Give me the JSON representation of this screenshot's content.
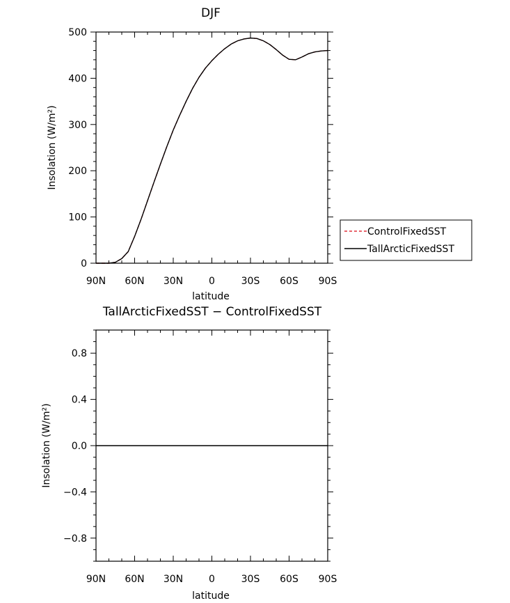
{
  "chart_data": [
    {
      "type": "line",
      "title": "DJF",
      "xlabel": "latitude",
      "ylabel": "Insolation (W/m²)",
      "x_ticks": [
        "90N",
        "60N",
        "30N",
        "0",
        "30S",
        "60S",
        "90S"
      ],
      "x_tick_values": [
        90,
        60,
        30,
        0,
        -30,
        -60,
        -90
      ],
      "y_ticks": [
        "0",
        "100",
        "200",
        "300",
        "400",
        "500"
      ],
      "y_tick_values": [
        0,
        100,
        200,
        300,
        400,
        500
      ],
      "xlim": [
        90,
        -90
      ],
      "ylim": [
        0,
        500
      ],
      "grid": false,
      "legend_position": "outside-right",
      "x": [
        90,
        85,
        80,
        75,
        70,
        65,
        60,
        55,
        50,
        45,
        40,
        35,
        30,
        25,
        20,
        15,
        10,
        5,
        0,
        -5,
        -10,
        -15,
        -20,
        -25,
        -30,
        -35,
        -40,
        -45,
        -50,
        -55,
        -60,
        -65,
        -70,
        -75,
        -80,
        -85,
        -90
      ],
      "series": [
        {
          "name": "ControlFixedSST",
          "color": "#e0303a",
          "style": "dashed",
          "values": [
            0,
            0,
            0,
            2,
            10,
            25,
            58,
            95,
            135,
            175,
            214,
            252,
            288,
            320,
            350,
            378,
            402,
            422,
            438,
            452,
            464,
            474,
            481,
            485,
            487,
            486,
            481,
            473,
            462,
            450,
            441,
            440,
            446,
            453,
            457,
            459,
            460
          ]
        },
        {
          "name": "TallArcticFixedSST",
          "color": "#000000",
          "style": "solid",
          "values": [
            0,
            0,
            0,
            2,
            10,
            25,
            58,
            95,
            135,
            175,
            214,
            252,
            288,
            320,
            350,
            378,
            402,
            422,
            438,
            452,
            464,
            474,
            481,
            485,
            487,
            486,
            481,
            473,
            462,
            450,
            441,
            440,
            446,
            453,
            457,
            459,
            460
          ]
        }
      ]
    },
    {
      "type": "line",
      "title": "TallArcticFixedSST − ControlFixedSST",
      "xlabel": "latitude",
      "ylabel": "Insolation (W/m²)",
      "x_ticks": [
        "90N",
        "60N",
        "30N",
        "0",
        "30S",
        "60S",
        "90S"
      ],
      "x_tick_values": [
        90,
        60,
        30,
        0,
        -30,
        -60,
        -90
      ],
      "y_ticks": [
        "−0.8",
        "−0.4",
        "0.0",
        "0.4",
        "0.8"
      ],
      "y_tick_values": [
        -0.8,
        -0.4,
        0.0,
        0.4,
        0.8
      ],
      "xlim": [
        90,
        -90
      ],
      "ylim": [
        -1,
        1
      ],
      "grid": false,
      "x": [
        90,
        -90
      ],
      "series": [
        {
          "color": "#000000",
          "style": "solid",
          "values": [
            0,
            0
          ]
        }
      ]
    }
  ]
}
